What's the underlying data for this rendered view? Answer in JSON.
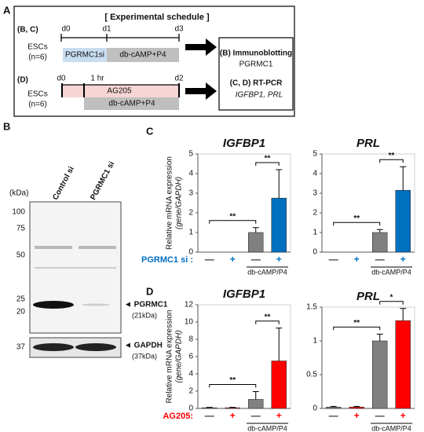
{
  "panel_a": {
    "label": "A",
    "title": "[ Experimental schedule ]",
    "schedule_bc": {
      "label": "(B, C)",
      "days": [
        "d0",
        "d1",
        "d3"
      ],
      "cells": "ESCs",
      "n": "(n=6)",
      "treatment": "PGRMC1si",
      "stimulus": "db-cAMP+P4"
    },
    "schedule_d": {
      "label": "(D)",
      "days": [
        "d0",
        "1 hr",
        "d2"
      ],
      "cells": "ESCs",
      "n": "(n=6)",
      "treatment": "AG205",
      "stimulus": "db-cAMP+P4"
    },
    "outputs": {
      "b_method": "(B) Immunoblotting",
      "b_target": "PGRMC1",
      "cd_method": "(C, D) RT-PCR",
      "cd_target": "IGFBP1, PRL"
    }
  },
  "panel_b": {
    "label": "B",
    "unit": "(kDa)",
    "markers": [
      "100",
      "75",
      "50",
      "25",
      "20"
    ],
    "lanes": [
      "Control si",
      "PGRMC1 si"
    ],
    "band1": "◄ PGRMC1",
    "band1_size": "(21kDa)",
    "loading_marker": "37",
    "band2": "◄ GAPDH",
    "band2_size": "(37kDa)"
  },
  "panel_labels": {
    "c": "C",
    "d": "D"
  },
  "chart_data": [
    {
      "type": "bar",
      "title": "IGFBP1",
      "ylabel": [
        "Relative mRNA expression",
        "(gene/GAPDH)"
      ],
      "categories": [
        "—",
        "+",
        "—",
        "+"
      ],
      "category_colors": [
        "#333333",
        "#0070c0",
        "#333333",
        "#0070c0"
      ],
      "values": [
        0,
        0,
        1.0,
        2.75
      ],
      "errors": [
        0,
        0,
        0.25,
        1.45
      ],
      "colors": [
        "#808080",
        "#0070c0",
        "#808080",
        "#0070c0"
      ],
      "ylim": [
        0,
        5
      ],
      "yticks": [
        0,
        1,
        2,
        3,
        4,
        5
      ],
      "treatment_label": "PGRMC1 si :",
      "treatment_color": "#0070c0",
      "group_label": "db-cAMP/P4",
      "group_span": [
        2,
        3
      ],
      "brackets": [
        {
          "bars": [
            0,
            2
          ],
          "label": "**"
        },
        {
          "bars": [
            2,
            3
          ],
          "label": "**"
        }
      ]
    },
    {
      "type": "bar",
      "title": "PRL",
      "categories": [
        "—",
        "+",
        "—",
        "+"
      ],
      "category_colors": [
        "#333333",
        "#0070c0",
        "#333333",
        "#0070c0"
      ],
      "values": [
        0,
        0,
        1.0,
        3.15
      ],
      "errors": [
        0,
        0,
        0.15,
        1.2
      ],
      "colors": [
        "#808080",
        "#0070c0",
        "#808080",
        "#0070c0"
      ],
      "ylim": [
        0,
        5
      ],
      "yticks": [
        0,
        1,
        2,
        3,
        4,
        5
      ],
      "group_label": "db-cAMP/P4",
      "group_span": [
        2,
        3
      ],
      "brackets": [
        {
          "bars": [
            0,
            2
          ],
          "label": "**"
        },
        {
          "bars": [
            2,
            3
          ],
          "label": "**"
        }
      ]
    },
    {
      "type": "bar",
      "title": "IGFBP1",
      "ylabel": [
        "Relative mRNA expression",
        "(gene/GAPDH)"
      ],
      "categories": [
        "—",
        "+",
        "—",
        "+"
      ],
      "category_colors": [
        "#333333",
        "#ff0000",
        "#333333",
        "#ff0000"
      ],
      "values": [
        0.08,
        0.08,
        1.05,
        5.5
      ],
      "errors": [
        0.05,
        0.05,
        0.9,
        3.8
      ],
      "colors": [
        "#808080",
        "#ff0000",
        "#808080",
        "#ff0000"
      ],
      "ylim": [
        0,
        12
      ],
      "yticks": [
        0,
        2,
        4,
        6,
        8,
        10,
        12
      ],
      "treatment_label": "AG205:",
      "treatment_color": "#ff0000",
      "group_label": "db-cAMP/P4",
      "group_span": [
        2,
        3
      ],
      "brackets": [
        {
          "bars": [
            0,
            2
          ],
          "label": "**"
        },
        {
          "bars": [
            2,
            3
          ],
          "label": "**"
        }
      ]
    },
    {
      "type": "bar",
      "title": "PRL",
      "categories": [
        "—",
        "+",
        "—",
        "+"
      ],
      "category_colors": [
        "#333333",
        "#ff0000",
        "#333333",
        "#ff0000"
      ],
      "values": [
        0.02,
        0.02,
        1.0,
        1.3
      ],
      "errors": [
        0.01,
        0.01,
        0.1,
        0.18
      ],
      "colors": [
        "#808080",
        "#ff0000",
        "#808080",
        "#ff0000"
      ],
      "ylim": [
        0,
        1.5
      ],
      "yticks": [
        0,
        0.5,
        1,
        1.5
      ],
      "group_label": "db-cAMP/P4",
      "group_span": [
        2,
        3
      ],
      "brackets": [
        {
          "bars": [
            0,
            2
          ],
          "label": "**"
        },
        {
          "bars": [
            2,
            3
          ],
          "label": "*"
        }
      ]
    }
  ]
}
